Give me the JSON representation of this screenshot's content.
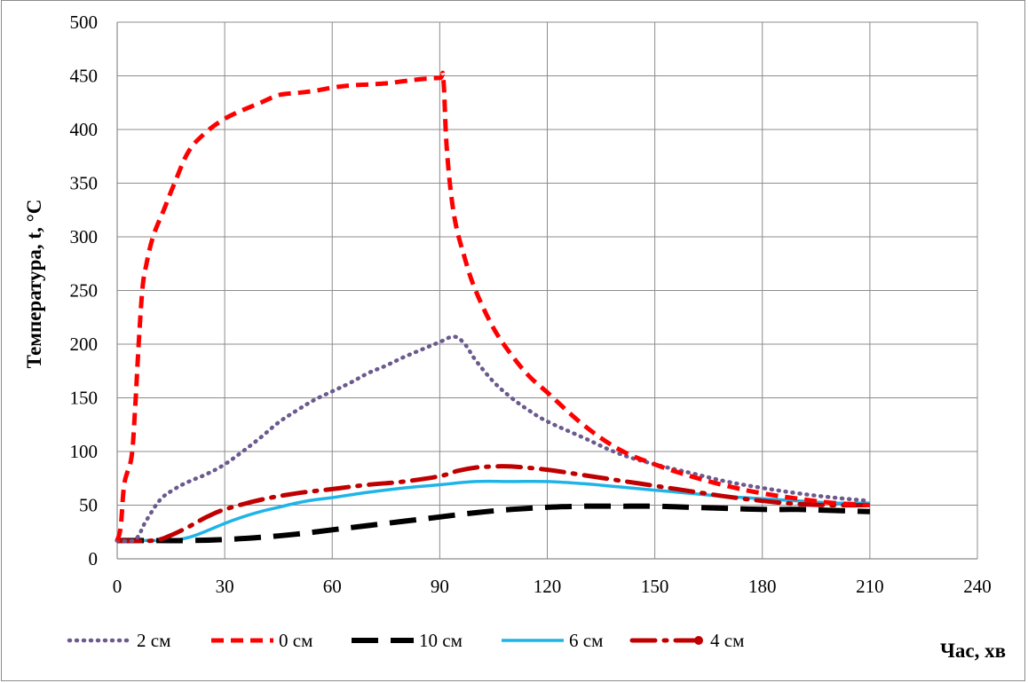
{
  "chart_data": {
    "type": "line",
    "title": "",
    "xlabel": "Час, хв",
    "ylabel": "Температура, t, °С",
    "xlim": [
      0,
      240
    ],
    "ylim": [
      0,
      500
    ],
    "x_ticks": [
      "0",
      "30",
      "60",
      "90",
      "120",
      "150",
      "180",
      "210",
      "240"
    ],
    "y_ticks": [
      "0",
      "50",
      "100",
      "150",
      "200",
      "250",
      "300",
      "350",
      "400",
      "450",
      "500"
    ],
    "grid": true,
    "legend_position": "bottom",
    "series": [
      {
        "name": "2 см",
        "color": "#6b5a8e",
        "style": "dotted",
        "points": [
          [
            0,
            17
          ],
          [
            5,
            18
          ],
          [
            8,
            35
          ],
          [
            12,
            55
          ],
          [
            16,
            65
          ],
          [
            20,
            72
          ],
          [
            25,
            79
          ],
          [
            30,
            88
          ],
          [
            35,
            100
          ],
          [
            40,
            113
          ],
          [
            45,
            127
          ],
          [
            50,
            138
          ],
          [
            55,
            148
          ],
          [
            60,
            156
          ],
          [
            65,
            164
          ],
          [
            70,
            173
          ],
          [
            75,
            180
          ],
          [
            80,
            188
          ],
          [
            85,
            195
          ],
          [
            90,
            202
          ],
          [
            94,
            207
          ],
          [
            97,
            200
          ],
          [
            100,
            185
          ],
          [
            105,
            165
          ],
          [
            110,
            150
          ],
          [
            115,
            138
          ],
          [
            120,
            128
          ],
          [
            130,
            113
          ],
          [
            140,
            98
          ],
          [
            150,
            88
          ],
          [
            160,
            80
          ],
          [
            170,
            72
          ],
          [
            180,
            66
          ],
          [
            190,
            61
          ],
          [
            200,
            57
          ],
          [
            210,
            54
          ]
        ]
      },
      {
        "name": "0 см",
        "color": "#ff0000",
        "style": "dashed",
        "points": [
          [
            0,
            17
          ],
          [
            1,
            30
          ],
          [
            2,
            70
          ],
          [
            4,
            95
          ],
          [
            5,
            140
          ],
          [
            6,
            200
          ],
          [
            7,
            250
          ],
          [
            8,
            272
          ],
          [
            10,
            300
          ],
          [
            13,
            325
          ],
          [
            16,
            350
          ],
          [
            20,
            380
          ],
          [
            25,
            398
          ],
          [
            30,
            410
          ],
          [
            35,
            418
          ],
          [
            40,
            425
          ],
          [
            45,
            432
          ],
          [
            50,
            434
          ],
          [
            55,
            436
          ],
          [
            60,
            439
          ],
          [
            65,
            441
          ],
          [
            70,
            442
          ],
          [
            75,
            443
          ],
          [
            80,
            445
          ],
          [
            85,
            447
          ],
          [
            90,
            448
          ],
          [
            91,
            447
          ],
          [
            92,
            380
          ],
          [
            94,
            320
          ],
          [
            97,
            280
          ],
          [
            100,
            250
          ],
          [
            105,
            215
          ],
          [
            110,
            190
          ],
          [
            115,
            170
          ],
          [
            120,
            155
          ],
          [
            130,
            125
          ],
          [
            140,
            102
          ],
          [
            150,
            88
          ],
          [
            160,
            77
          ],
          [
            170,
            68
          ],
          [
            180,
            61
          ],
          [
            190,
            56
          ],
          [
            200,
            52
          ],
          [
            210,
            50
          ]
        ]
      },
      {
        "name": "10 см",
        "color": "#000000",
        "style": "longdash",
        "points": [
          [
            0,
            17
          ],
          [
            10,
            17
          ],
          [
            20,
            17
          ],
          [
            30,
            18
          ],
          [
            40,
            20
          ],
          [
            50,
            23
          ],
          [
            60,
            27
          ],
          [
            70,
            31
          ],
          [
            80,
            35
          ],
          [
            90,
            39
          ],
          [
            100,
            43
          ],
          [
            110,
            46
          ],
          [
            120,
            48
          ],
          [
            130,
            49
          ],
          [
            140,
            49
          ],
          [
            150,
            49
          ],
          [
            160,
            48
          ],
          [
            170,
            47
          ],
          [
            180,
            46
          ],
          [
            190,
            46
          ],
          [
            200,
            45
          ],
          [
            210,
            44
          ]
        ]
      },
      {
        "name": "6 см",
        "color": "#1fb4e8",
        "style": "solid",
        "points": [
          [
            0,
            17
          ],
          [
            10,
            17
          ],
          [
            15,
            17
          ],
          [
            20,
            20
          ],
          [
            25,
            26
          ],
          [
            30,
            33
          ],
          [
            35,
            39
          ],
          [
            40,
            44
          ],
          [
            45,
            48
          ],
          [
            50,
            52
          ],
          [
            55,
            55
          ],
          [
            60,
            57
          ],
          [
            70,
            62
          ],
          [
            80,
            66
          ],
          [
            90,
            69
          ],
          [
            100,
            72
          ],
          [
            110,
            72
          ],
          [
            120,
            72
          ],
          [
            130,
            70
          ],
          [
            140,
            67
          ],
          [
            150,
            64
          ],
          [
            160,
            61
          ],
          [
            170,
            58
          ],
          [
            180,
            56
          ],
          [
            190,
            54
          ],
          [
            200,
            52
          ],
          [
            210,
            52
          ]
        ]
      },
      {
        "name": "4 см",
        "color": "#c00000",
        "style": "dashdot",
        "points": [
          [
            0,
            17
          ],
          [
            10,
            17
          ],
          [
            15,
            22
          ],
          [
            20,
            30
          ],
          [
            25,
            39
          ],
          [
            30,
            46
          ],
          [
            40,
            55
          ],
          [
            50,
            61
          ],
          [
            60,
            65
          ],
          [
            70,
            69
          ],
          [
            80,
            72
          ],
          [
            90,
            77
          ],
          [
            95,
            82
          ],
          [
            100,
            85
          ],
          [
            105,
            86
          ],
          [
            110,
            86
          ],
          [
            120,
            83
          ],
          [
            130,
            78
          ],
          [
            140,
            73
          ],
          [
            150,
            68
          ],
          [
            160,
            63
          ],
          [
            170,
            58
          ],
          [
            180,
            54
          ],
          [
            190,
            51
          ],
          [
            200,
            50
          ],
          [
            210,
            50
          ]
        ]
      }
    ]
  }
}
